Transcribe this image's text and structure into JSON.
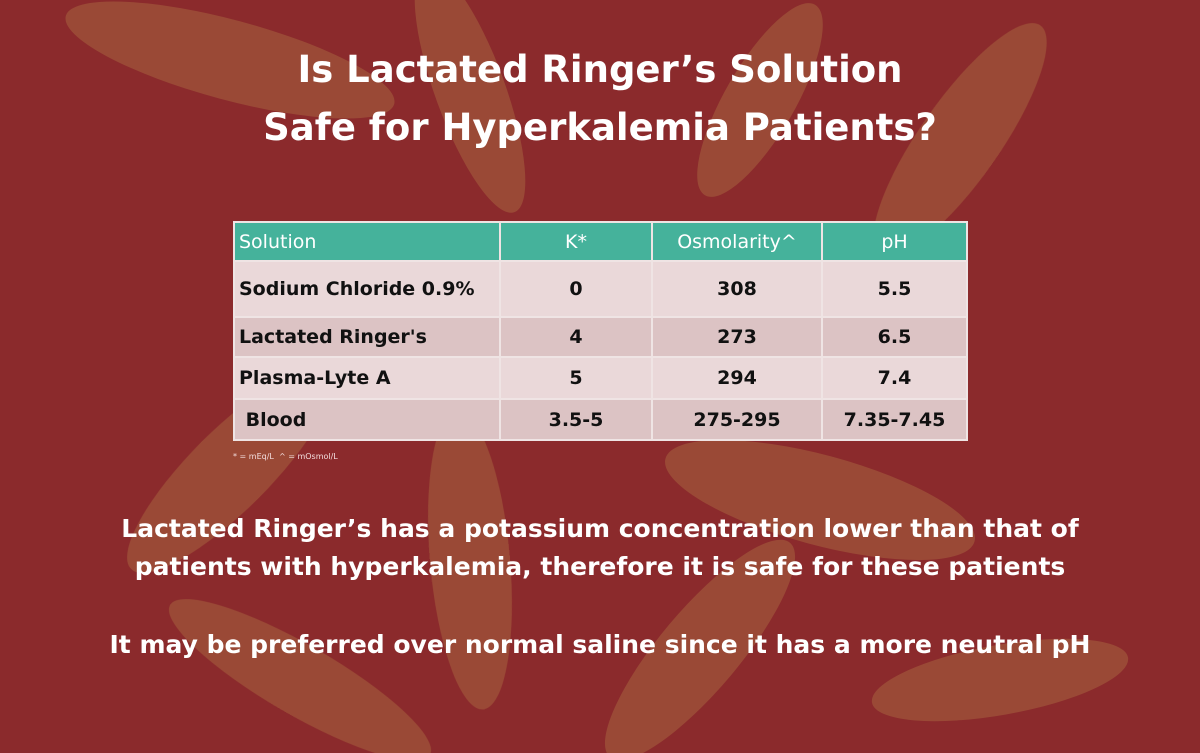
{
  "slide": {
    "title": [
      "Is Lactated Ringer’s Solution",
      "Safe for Hyperkalemia Patients?"
    ],
    "table": {
      "header": [
        "Solution",
        "K*",
        "Osmolarity^",
        "pH"
      ],
      "rows": [
        [
          "Sodium Chloride 0.9%",
          "0",
          "308",
          "5.5"
        ],
        [
          "Lactated Ringer's",
          "4",
          "273",
          "6.5"
        ],
        [
          "Plasma-Lyte A",
          "5",
          "294",
          "7.4"
        ],
        [
          " Blood",
          "3.5-5",
          "275-295",
          "7.35-7.45"
        ]
      ],
      "footnote": "* = mEq/L  ^ = mOsmol/L"
    },
    "body": [
      "Lactated Ringer’s has a potassium concentration lower than that of",
      "patients with hyperkalemia, therefore it is safe for these patients",
      "It may be preferred over normal saline since it has a more neutral pH"
    ]
  }
}
